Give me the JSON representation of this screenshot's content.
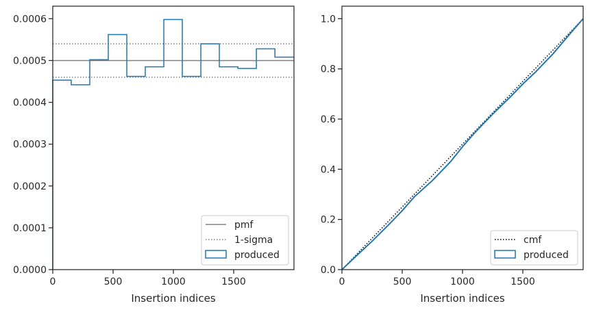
{
  "chart_data": [
    {
      "type": "step",
      "xlabel": "Insertion indices",
      "ylabel": "",
      "xlim": [
        0,
        2000
      ],
      "ylim": [
        0,
        0.00063
      ],
      "xticks": [
        0,
        500,
        1000,
        1500
      ],
      "xtick_labels": [
        "0",
        "500",
        "1000",
        "1500"
      ],
      "yticks": [
        0,
        0.0001,
        0.0002,
        0.0003,
        0.0004,
        0.0005,
        0.0006
      ],
      "ytick_labels": [
        "0.0000",
        "0.0001",
        "0.0002",
        "0.0003",
        "0.0004",
        "0.0005",
        "0.0006"
      ],
      "grid": false,
      "legend_position": "lower-right",
      "legend": [
        "pmf",
        "1-sigma",
        "produced"
      ],
      "pmf": {
        "name": "pmf",
        "value": 0.0005,
        "color": "#808080",
        "style": "solid"
      },
      "sigma": {
        "name": "1-sigma",
        "values": [
          0.00046,
          0.00054
        ],
        "color": "#808080",
        "style": "dotted"
      },
      "series": [
        {
          "name": "produced",
          "color": "#1f77b4",
          "bin_edges": [
            0,
            153,
            307,
            460,
            614,
            767,
            921,
            1074,
            1228,
            1381,
            1535,
            1688,
            1842,
            2000
          ],
          "values": [
            0.000453,
            0.000442,
            0.000502,
            0.000562,
            0.000462,
            0.000485,
            0.000598,
            0.000462,
            0.00054,
            0.000485,
            0.000481,
            0.000528,
            0.000508
          ]
        }
      ]
    },
    {
      "type": "line",
      "xlabel": "Insertion indices",
      "ylabel": "",
      "xlim": [
        0,
        2000
      ],
      "ylim": [
        0,
        1.05
      ],
      "xticks": [
        0,
        500,
        1000,
        1500
      ],
      "xtick_labels": [
        "0",
        "500",
        "1000",
        "1500"
      ],
      "yticks": [
        0,
        0.2,
        0.4,
        0.6,
        0.8,
        1.0
      ],
      "ytick_labels": [
        "0.0",
        "0.2",
        "0.4",
        "0.6",
        "0.8",
        "1.0"
      ],
      "grid": false,
      "legend_position": "lower-right",
      "legend": [
        "cmf",
        "produced"
      ],
      "series": [
        {
          "name": "cmf",
          "color": "#000000",
          "style": "dotted",
          "x": [
            0,
            2000
          ],
          "y": [
            0,
            1.0
          ]
        },
        {
          "name": "produced",
          "color": "#1f77b4",
          "style": "solid",
          "x": [
            0,
            100,
            250,
            400,
            500,
            600,
            750,
            900,
            1000,
            1100,
            1250,
            1400,
            1500,
            1600,
            1750,
            1900,
            2000
          ],
          "y": [
            0,
            0.046,
            0.113,
            0.185,
            0.235,
            0.29,
            0.355,
            0.43,
            0.49,
            0.545,
            0.62,
            0.69,
            0.74,
            0.785,
            0.86,
            0.945,
            1.0
          ]
        }
      ]
    }
  ]
}
